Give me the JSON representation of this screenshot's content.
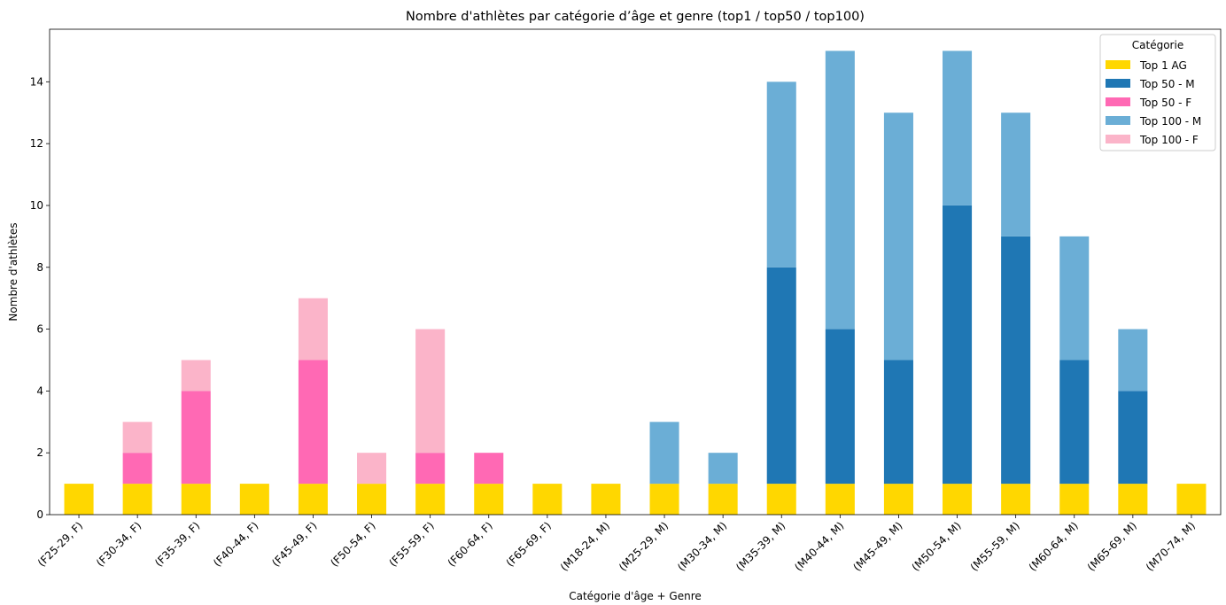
{
  "chart_data": {
    "type": "bar",
    "stacked": true,
    "title": "Nombre d'athlètes par catégorie d’âge et genre (top1 / top50 / top100)",
    "xlabel": "Catégorie d'âge + Genre",
    "ylabel": "Nombre d'athlètes",
    "ylim": [
      0,
      15.7
    ],
    "yticks": [
      0,
      2,
      4,
      6,
      8,
      10,
      12,
      14
    ],
    "grid": false,
    "legend_title": "Catégorie",
    "legend_position": "top-right",
    "categories": [
      "(F25-29, F)",
      "(F30-34, F)",
      "(F35-39, F)",
      "(F40-44, F)",
      "(F45-49, F)",
      "(F50-54, F)",
      "(F55-59, F)",
      "(F60-64, F)",
      "(F65-69, F)",
      "(M18-24, M)",
      "(M25-29, M)",
      "(M30-34, M)",
      "(M35-39, M)",
      "(M40-44, M)",
      "(M45-49, M)",
      "(M50-54, M)",
      "(M55-59, M)",
      "(M60-64, M)",
      "(M65-69, M)",
      "(M70-74, M)"
    ],
    "series": [
      {
        "name": "Top 1 AG",
        "color": "#FFD700",
        "values": [
          1,
          1,
          1,
          1,
          1,
          1,
          1,
          1,
          1,
          1,
          1,
          1,
          1,
          1,
          1,
          1,
          1,
          1,
          1,
          1
        ]
      },
      {
        "name": "Top 50 - M",
        "color": "#1F77B4",
        "values": [
          0,
          0,
          0,
          0,
          0,
          0,
          0,
          0,
          0,
          0,
          0,
          0,
          7,
          5,
          4,
          9,
          8,
          4,
          3,
          0
        ]
      },
      {
        "name": "Top 50 - F",
        "color": "#FF69B4",
        "values": [
          0,
          1,
          3,
          0,
          4,
          0,
          1,
          1,
          0,
          0,
          0,
          0,
          0,
          0,
          0,
          0,
          0,
          0,
          0,
          0
        ]
      },
      {
        "name": "Top 100 - M",
        "color": "#6BAED6",
        "values": [
          0,
          0,
          0,
          0,
          0,
          0,
          0,
          0,
          0,
          0,
          2,
          1,
          6,
          9,
          8,
          5,
          4,
          4,
          2,
          0
        ]
      },
      {
        "name": "Top 100 - F",
        "color": "#FBB4C9",
        "values": [
          0,
          1,
          1,
          0,
          2,
          1,
          4,
          0,
          0,
          0,
          0,
          0,
          0,
          0,
          0,
          0,
          0,
          0,
          0,
          0
        ]
      }
    ]
  }
}
